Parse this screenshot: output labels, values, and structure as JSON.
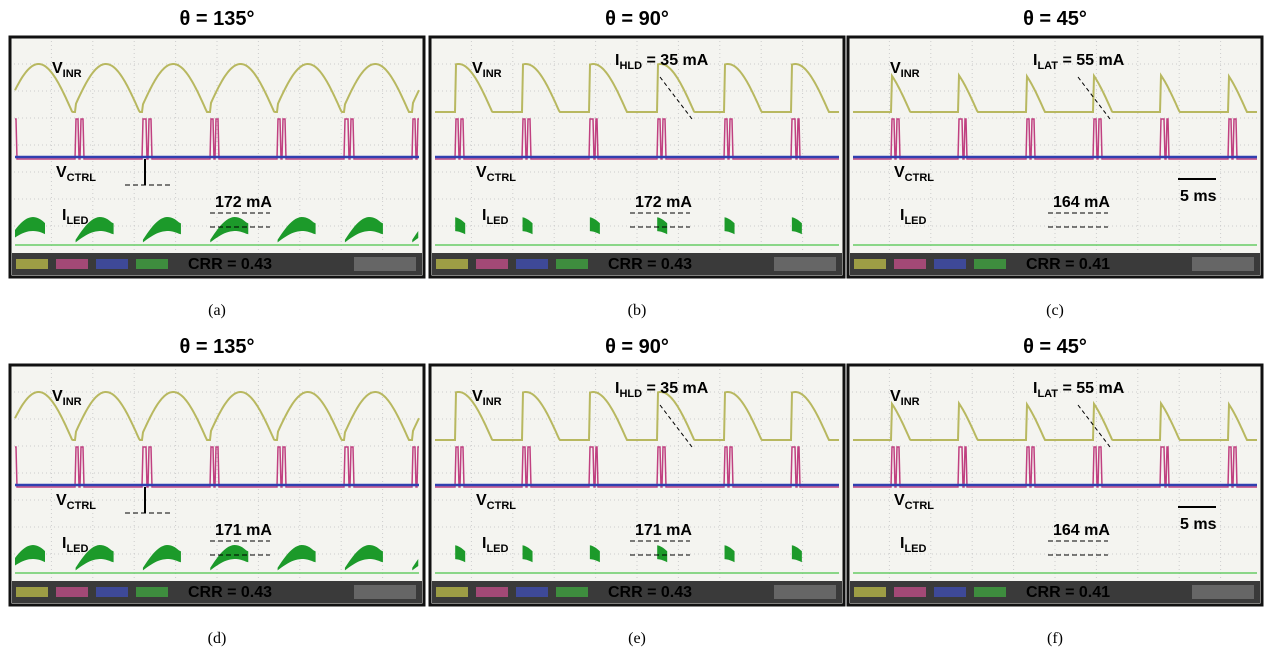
{
  "panels": [
    {
      "title": "θ = 135°",
      "caption": "(a)",
      "vinr": {
        "main": "V",
        "sub": "INR"
      },
      "vctrl": {
        "main": "V",
        "sub": "CTRL"
      },
      "iled": {
        "main": "I",
        "sub": "LED"
      },
      "current": "172 mA",
      "crr": "CRR = 0.43"
    },
    {
      "title": "θ = 90°",
      "caption": "(b)",
      "vinr": {
        "main": "V",
        "sub": "INR"
      },
      "vctrl": {
        "main": "V",
        "sub": "CTRL"
      },
      "iled": {
        "main": "I",
        "sub": "LED"
      },
      "current": "172 mA",
      "crr": "CRR = 0.43",
      "note": {
        "main": "I",
        "sub": "HLD",
        "rest": " = 35 mA"
      }
    },
    {
      "title": "θ = 45°",
      "caption": "(c)",
      "vinr": {
        "main": "V",
        "sub": "INR"
      },
      "vctrl": {
        "main": "V",
        "sub": "CTRL"
      },
      "iled": {
        "main": "I",
        "sub": "LED"
      },
      "current": "164 mA",
      "crr": "CRR = 0.41",
      "note": {
        "main": "I",
        "sub": "LAT",
        "rest": " = 55 mA"
      },
      "scale": "5 ms"
    },
    {
      "title": "θ = 135°",
      "caption": "(d)",
      "vinr": {
        "main": "V",
        "sub": "INR"
      },
      "vctrl": {
        "main": "V",
        "sub": "CTRL"
      },
      "iled": {
        "main": "I",
        "sub": "LED"
      },
      "current": "171 mA",
      "crr": "CRR = 0.43"
    },
    {
      "title": "θ = 90°",
      "caption": "(e)",
      "vinr": {
        "main": "V",
        "sub": "INR"
      },
      "vctrl": {
        "main": "V",
        "sub": "CTRL"
      },
      "iled": {
        "main": "I",
        "sub": "LED"
      },
      "current": "171 mA",
      "crr": "CRR = 0.43",
      "note": {
        "main": "I",
        "sub": "HLD",
        "rest": " = 35 mA"
      }
    },
    {
      "title": "θ = 45°",
      "caption": "(f)",
      "vinr": {
        "main": "V",
        "sub": "INR"
      },
      "vctrl": {
        "main": "V",
        "sub": "CTRL"
      },
      "iled": {
        "main": "I",
        "sub": "LED"
      },
      "current": "164 mA",
      "crr": "CRR = 0.41",
      "note": {
        "main": "I",
        "sub": "LAT",
        "rest": " = 55 mA"
      },
      "scale": "5 ms"
    }
  ]
}
